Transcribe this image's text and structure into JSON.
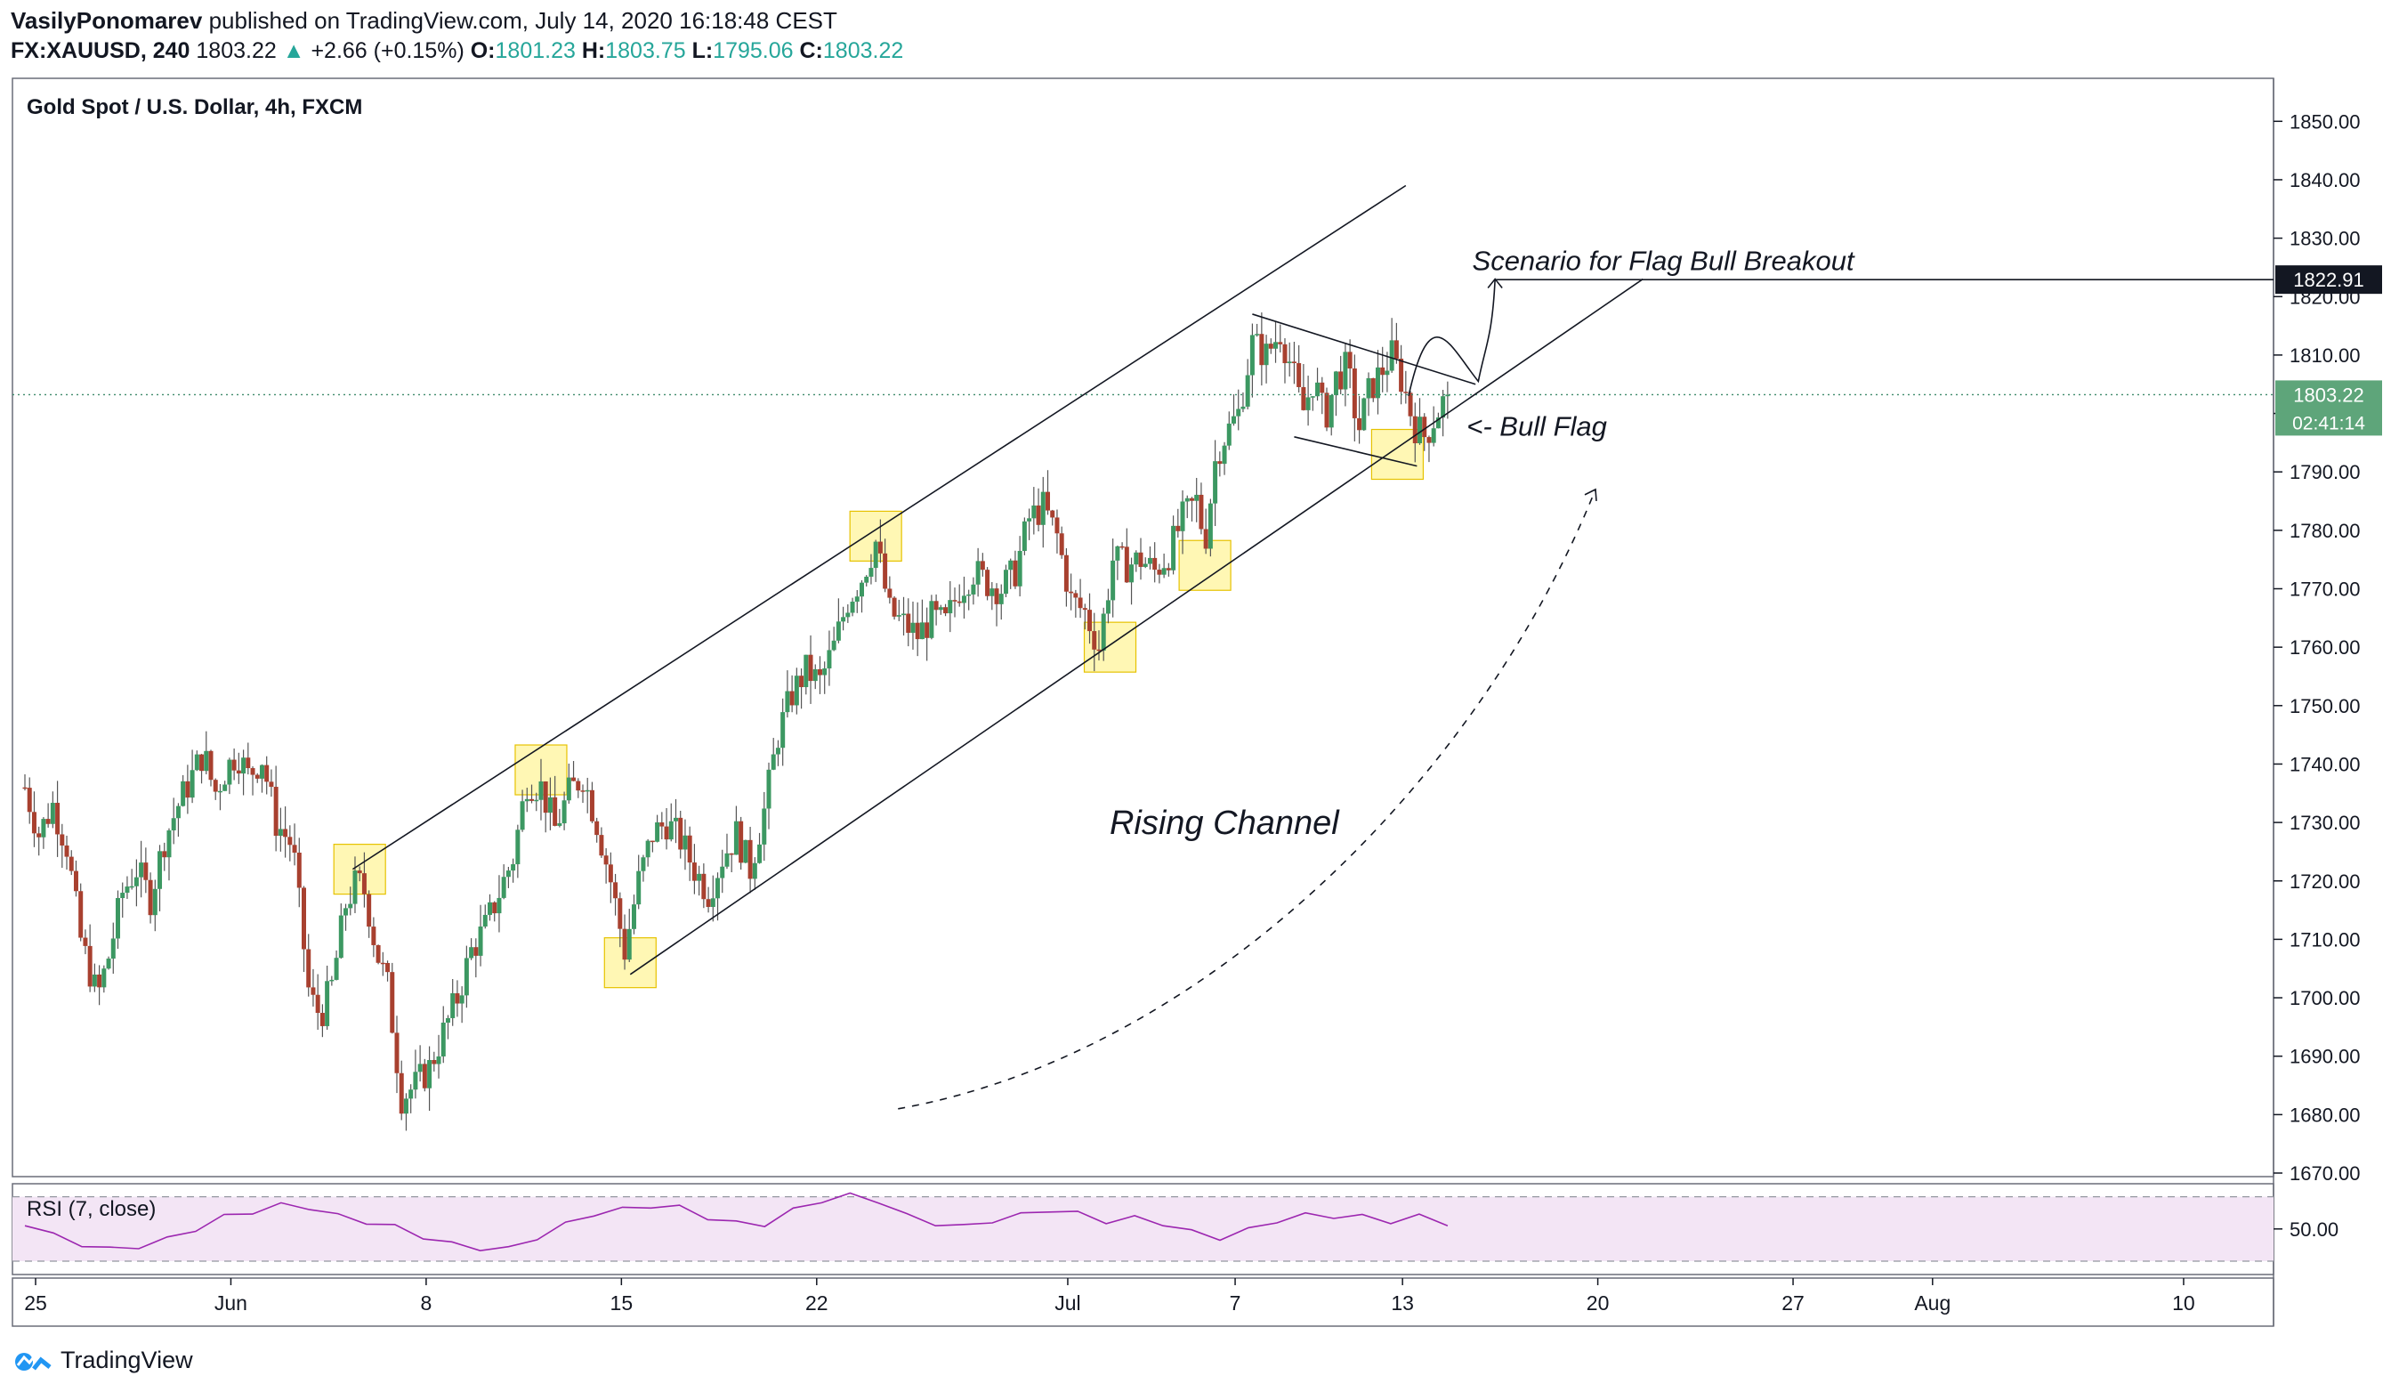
{
  "header": {
    "author": "VasilyPonomarev",
    "published_text": "published on TradingView.com, July 14, 2020 16:18:48 CEST",
    "symbol": "FX:XAUUSD, 240",
    "last": "1803.22",
    "change": "+2.66 (+0.15%)",
    "open_label": "O:",
    "open": "1801.23",
    "high_label": "H:",
    "high": "1803.75",
    "low_label": "L:",
    "low": "1795.06",
    "close_label": "C:",
    "close": "1803.22"
  },
  "footer": {
    "brand": "TradingView"
  },
  "colors": {
    "up": "#26a69a",
    "down": "#ef5350",
    "candle_up": "#3c9862",
    "candle_down": "#a8402f",
    "rsi": "#9c27b0",
    "rsi_band": "#f3e5f5",
    "highlight": "#fff176",
    "price_label": "#5ea57a"
  },
  "chart_data": [
    {
      "type": "candlestick",
      "title": "Gold Spot / U.S. Dollar, 4h, FXCM",
      "ylim": [
        1667,
        1856
      ],
      "y_ticks": [
        "1850.00",
        "1840.00",
        "1830.00",
        "1820.00",
        "1810.00",
        "1800.00",
        "1790.00",
        "1780.00",
        "1770.00",
        "1760.00",
        "1750.00",
        "1740.00",
        "1730.00",
        "1720.00",
        "1710.00",
        "1700.00",
        "1690.00",
        "1680.00",
        "1670.00"
      ],
      "x_ticks": [
        {
          "label": "25",
          "day": 0
        },
        {
          "label": "Jun",
          "day": 7
        },
        {
          "label": "8",
          "day": 14
        },
        {
          "label": "15",
          "day": 21
        },
        {
          "label": "22",
          "day": 28
        },
        {
          "label": "Jul",
          "day": 37
        },
        {
          "label": "7",
          "day": 43
        },
        {
          "label": "13",
          "day": 49
        },
        {
          "label": "20",
          "day": 56
        },
        {
          "label": "27",
          "day": 63
        },
        {
          "label": "Aug",
          "day": 68
        },
        {
          "label": "10",
          "day": 77
        }
      ],
      "x_start_date": "May 25, 2020",
      "current_price": "1803.22",
      "countdown": "02:41:14",
      "target_price": "1822.91",
      "price_path": [
        {
          "day": 0.0,
          "price": 1736
        },
        {
          "day": 0.5,
          "price": 1728
        },
        {
          "day": 1.0,
          "price": 1733
        },
        {
          "day": 1.5,
          "price": 1726
        },
        {
          "day": 2.0,
          "price": 1710
        },
        {
          "day": 2.6,
          "price": 1700
        },
        {
          "day": 3.0,
          "price": 1707
        },
        {
          "day": 3.5,
          "price": 1718
        },
        {
          "day": 4.0,
          "price": 1722
        },
        {
          "day": 4.5,
          "price": 1717
        },
        {
          "day": 5.0,
          "price": 1727
        },
        {
          "day": 5.5,
          "price": 1733
        },
        {
          "day": 6.0,
          "price": 1738
        },
        {
          "day": 6.4,
          "price": 1742
        },
        {
          "day": 6.8,
          "price": 1735
        },
        {
          "day": 7.2,
          "price": 1739
        },
        {
          "day": 7.6,
          "price": 1742
        },
        {
          "day": 8.0,
          "price": 1738
        },
        {
          "day": 8.5,
          "price": 1741
        },
        {
          "day": 9.0,
          "price": 1730
        },
        {
          "day": 9.6,
          "price": 1726
        },
        {
          "day": 10.2,
          "price": 1700
        },
        {
          "day": 10.6,
          "price": 1697
        },
        {
          "day": 11.0,
          "price": 1702
        },
        {
          "day": 11.5,
          "price": 1716
        },
        {
          "day": 11.9,
          "price": 1720
        },
        {
          "day": 12.2,
          "price": 1718
        },
        {
          "day": 12.6,
          "price": 1708
        },
        {
          "day": 13.0,
          "price": 1702
        },
        {
          "day": 13.5,
          "price": 1683
        },
        {
          "day": 14.0,
          "price": 1685
        },
        {
          "day": 14.5,
          "price": 1688
        },
        {
          "day": 15.0,
          "price": 1694
        },
        {
          "day": 15.5,
          "price": 1700
        },
        {
          "day": 16.0,
          "price": 1708
        },
        {
          "day": 16.5,
          "price": 1712
        },
        {
          "day": 17.0,
          "price": 1718
        },
        {
          "day": 17.5,
          "price": 1724
        },
        {
          "day": 18.0,
          "price": 1737
        },
        {
          "day": 18.5,
          "price": 1736
        },
        {
          "day": 19.0,
          "price": 1729
        },
        {
          "day": 19.5,
          "price": 1735
        },
        {
          "day": 20.0,
          "price": 1738
        },
        {
          "day": 20.5,
          "price": 1730
        },
        {
          "day": 21.0,
          "price": 1720
        },
        {
          "day": 21.5,
          "price": 1708
        },
        {
          "day": 22.0,
          "price": 1720
        },
        {
          "day": 22.5,
          "price": 1728
        },
        {
          "day": 23.0,
          "price": 1730
        },
        {
          "day": 23.5,
          "price": 1727
        },
        {
          "day": 24.0,
          "price": 1722
        },
        {
          "day": 24.5,
          "price": 1718
        },
        {
          "day": 25.0,
          "price": 1724
        },
        {
          "day": 25.5,
          "price": 1728
        },
        {
          "day": 26.0,
          "price": 1722
        },
        {
          "day": 26.5,
          "price": 1732
        },
        {
          "day": 27.0,
          "price": 1745
        },
        {
          "day": 27.5,
          "price": 1752
        },
        {
          "day": 28.0,
          "price": 1756
        },
        {
          "day": 28.5,
          "price": 1754
        },
        {
          "day": 29.0,
          "price": 1760
        },
        {
          "day": 29.5,
          "price": 1768
        },
        {
          "day": 30.0,
          "price": 1772
        },
        {
          "day": 30.5,
          "price": 1778
        },
        {
          "day": 31.0,
          "price": 1766
        },
        {
          "day": 31.5,
          "price": 1764
        },
        {
          "day": 32.0,
          "price": 1762
        },
        {
          "day": 32.5,
          "price": 1765
        },
        {
          "day": 33.0,
          "price": 1764
        },
        {
          "day": 33.5,
          "price": 1770
        },
        {
          "day": 34.0,
          "price": 1773
        },
        {
          "day": 34.5,
          "price": 1771
        },
        {
          "day": 35.0,
          "price": 1770
        },
        {
          "day": 35.5,
          "price": 1773
        },
        {
          "day": 36.0,
          "price": 1782
        },
        {
          "day": 36.5,
          "price": 1784
        },
        {
          "day": 37.0,
          "price": 1779
        },
        {
          "day": 37.5,
          "price": 1768
        },
        {
          "day": 38.0,
          "price": 1766
        },
        {
          "day": 38.5,
          "price": 1760
        },
        {
          "day": 39.0,
          "price": 1775
        },
        {
          "day": 39.5,
          "price": 1774
        },
        {
          "day": 40.0,
          "price": 1775
        },
        {
          "day": 40.5,
          "price": 1773
        },
        {
          "day": 41.0,
          "price": 1776
        },
        {
          "day": 41.5,
          "price": 1782
        },
        {
          "day": 42.0,
          "price": 1785
        },
        {
          "day": 42.3,
          "price": 1778
        },
        {
          "day": 42.7,
          "price": 1793
        },
        {
          "day": 43.0,
          "price": 1796
        },
        {
          "day": 43.5,
          "price": 1800
        },
        {
          "day": 44.0,
          "price": 1812
        },
        {
          "day": 44.5,
          "price": 1810
        },
        {
          "day": 45.0,
          "price": 1814
        },
        {
          "day": 45.4,
          "price": 1808
        },
        {
          "day": 45.8,
          "price": 1800
        },
        {
          "day": 46.2,
          "price": 1806
        },
        {
          "day": 46.6,
          "price": 1799
        },
        {
          "day": 47.0,
          "price": 1806
        },
        {
          "day": 47.4,
          "price": 1808
        },
        {
          "day": 47.8,
          "price": 1797
        },
        {
          "day": 48.2,
          "price": 1804
        },
        {
          "day": 48.6,
          "price": 1807
        },
        {
          "day": 49.0,
          "price": 1810
        },
        {
          "day": 49.4,
          "price": 1805
        },
        {
          "day": 49.8,
          "price": 1798
        },
        {
          "day": 50.2,
          "price": 1796
        },
        {
          "day": 50.6,
          "price": 1800
        },
        {
          "day": 51.0,
          "price": 1803.22
        }
      ],
      "annotations": [
        {
          "text": "Scenario for Flag Bull Breakout",
          "day": 51.5,
          "price": 1824.5
        },
        {
          "text": "<- Bull Flag",
          "day": 51.3,
          "price": 1796.2
        },
        {
          "text": "Rising Channel",
          "day": 38.5,
          "price": 1728
        }
      ],
      "channel": {
        "upper": [
          {
            "day": 11.75,
            "price": 1722
          },
          {
            "day": 49.5,
            "price": 1839
          }
        ],
        "lower": [
          {
            "day": 21.7,
            "price": 1704
          },
          {
            "day": 58.0,
            "price": 1823
          }
        ]
      },
      "flag": {
        "upper": [
          {
            "day": 44.0,
            "price": 1817
          },
          {
            "day": 52.0,
            "price": 1805
          }
        ],
        "lower": [
          {
            "day": 45.5,
            "price": 1796
          },
          {
            "day": 49.9,
            "price": 1791
          }
        ]
      },
      "highlights": [
        {
          "day": 12.0,
          "price": 1722
        },
        {
          "day": 18.5,
          "price": 1739
        },
        {
          "day": 21.7,
          "price": 1706
        },
        {
          "day": 30.5,
          "price": 1779
        },
        {
          "day": 38.9,
          "price": 1760
        },
        {
          "day": 42.3,
          "price": 1774
        },
        {
          "day": 49.2,
          "price": 1793
        }
      ],
      "scenario_path": [
        {
          "day": 49.6,
          "price": 1803
        },
        {
          "day": 50.4,
          "price": 1814
        },
        {
          "day": 51.4,
          "price": 1810
        },
        {
          "day": 52.1,
          "price": 1805.5
        },
        {
          "day": 52.6,
          "price": 1813
        },
        {
          "day": 52.7,
          "price": 1823
        }
      ],
      "dashed_arc": [
        {
          "day": 31.3,
          "price": 1681
        },
        {
          "day": 42,
          "price": 1690
        },
        {
          "day": 52,
          "price": 1736
        },
        {
          "day": 56.3,
          "price": 1787
        }
      ]
    },
    {
      "type": "line",
      "title": "RSI (7, close)",
      "ylim": [
        20,
        82
      ],
      "y_ticks": [
        "50.00"
      ],
      "bands": [
        30,
        70
      ],
      "values": [
        52,
        46,
        42,
        38,
        40,
        45,
        50,
        56,
        60,
        64,
        62,
        58,
        56,
        52,
        46,
        42,
        38,
        36,
        44,
        52,
        58,
        62,
        66,
        64,
        58,
        55,
        53,
        60,
        67,
        70,
        66,
        58,
        55,
        52,
        56,
        60,
        62,
        58,
        54,
        56,
        52,
        48,
        46,
        50,
        56,
        60,
        58,
        56,
        54,
        57,
        52
      ]
    }
  ]
}
